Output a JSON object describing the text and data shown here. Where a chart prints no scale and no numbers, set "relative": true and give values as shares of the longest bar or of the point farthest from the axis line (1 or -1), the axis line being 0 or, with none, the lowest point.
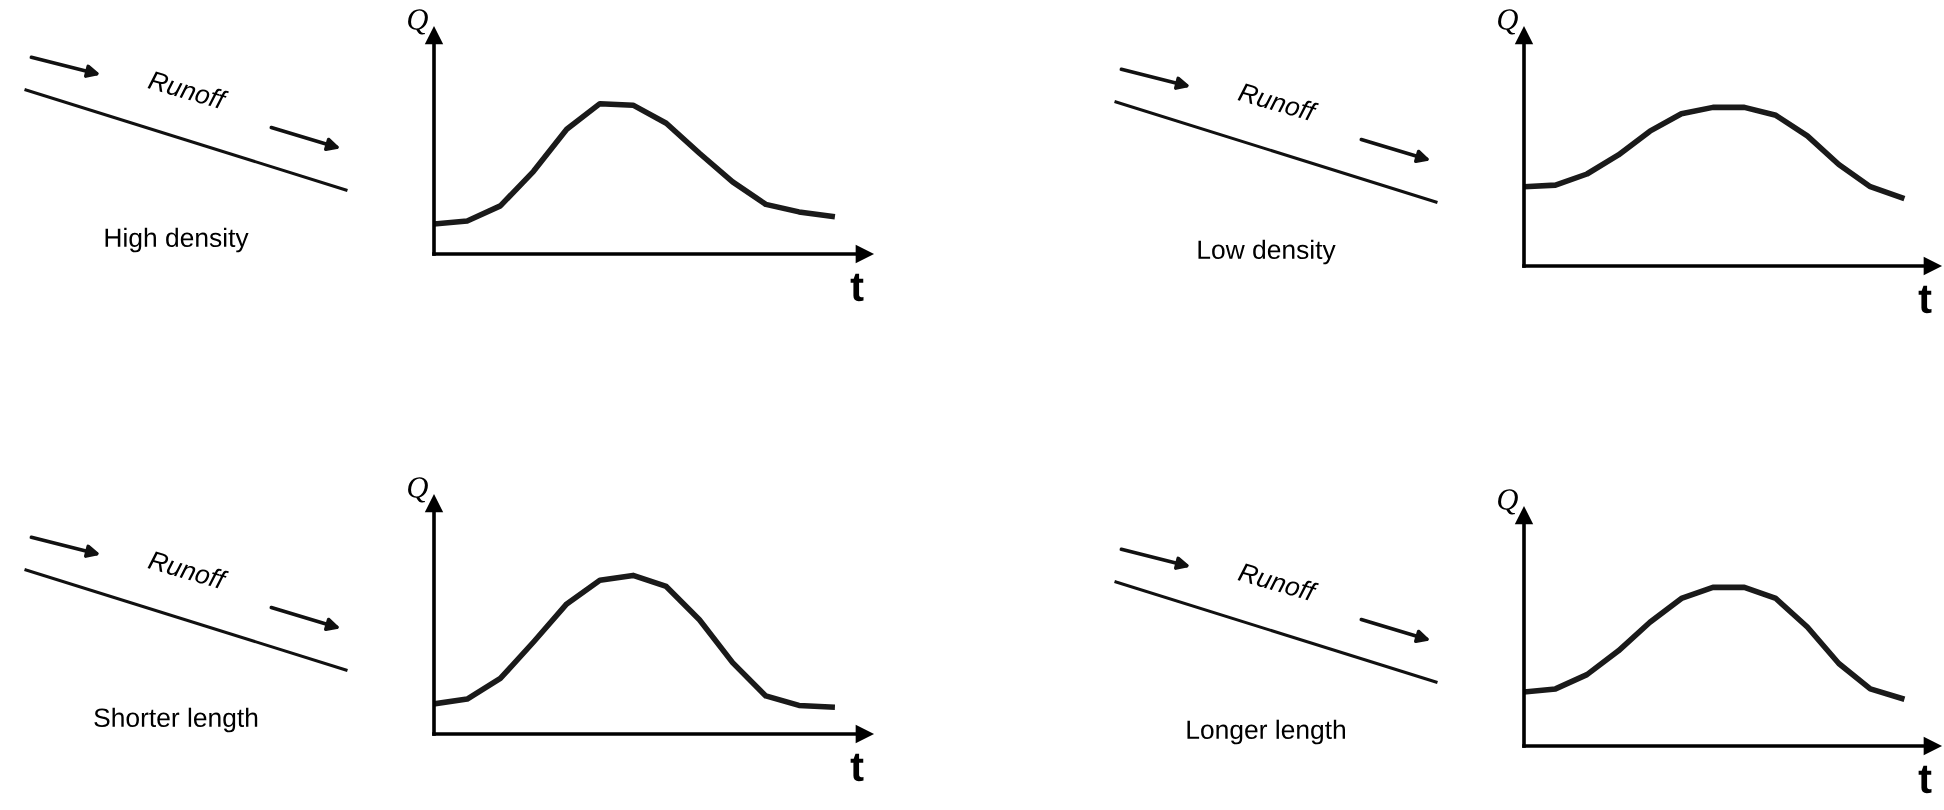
{
  "chart_data": [
    {
      "type": "line",
      "relative": true,
      "xlabel": "t",
      "ylabel": "Q",
      "annotations": [
        "Runoff",
        "High density"
      ],
      "categories": [
        null,
        null,
        null,
        null,
        null,
        null,
        null,
        null,
        null,
        null,
        null,
        null,
        null
      ],
      "series": [
        {
          "color": "#1a1a1a",
          "values": [
            0.2,
            0.22,
            0.32,
            0.55,
            0.83,
            1.0,
            0.99,
            0.87,
            0.67,
            0.48,
            0.33,
            0.28,
            0.25
          ]
        }
      ]
    },
    {
      "type": "line",
      "relative": true,
      "xlabel": "t",
      "ylabel": "Q",
      "annotations": [
        "Runoff",
        "Low density"
      ],
      "categories": [
        null,
        null,
        null,
        null,
        null,
        null,
        null,
        null,
        null,
        null,
        null,
        null,
        null
      ],
      "series": [
        {
          "color": "#1a1a1a",
          "values": [
            0.5,
            0.51,
            0.58,
            0.7,
            0.85,
            0.96,
            1.0,
            1.0,
            0.95,
            0.82,
            0.64,
            0.5,
            0.43
          ]
        }
      ]
    },
    {
      "type": "line",
      "relative": true,
      "xlabel": "t",
      "ylabel": "Q",
      "annotations": [
        "Runoff",
        "Shorter length"
      ],
      "categories": [
        null,
        null,
        null,
        null,
        null,
        null,
        null,
        null,
        null,
        null,
        null,
        null,
        null
      ],
      "series": [
        {
          "color": "#1a1a1a",
          "values": [
            0.19,
            0.22,
            0.35,
            0.58,
            0.82,
            0.97,
            1.0,
            0.93,
            0.72,
            0.45,
            0.24,
            0.18,
            0.17
          ]
        }
      ]
    },
    {
      "type": "line",
      "relative": true,
      "xlabel": "t",
      "ylabel": "Q",
      "annotations": [
        "Runoff",
        "Longer length"
      ],
      "categories": [
        null,
        null,
        null,
        null,
        null,
        null,
        null,
        null,
        null,
        null,
        null,
        null,
        null
      ],
      "series": [
        {
          "color": "#1a1a1a",
          "values": [
            0.34,
            0.36,
            0.45,
            0.6,
            0.78,
            0.93,
            1.0,
            1.0,
            0.93,
            0.75,
            0.52,
            0.36,
            0.3
          ]
        }
      ]
    }
  ]
}
